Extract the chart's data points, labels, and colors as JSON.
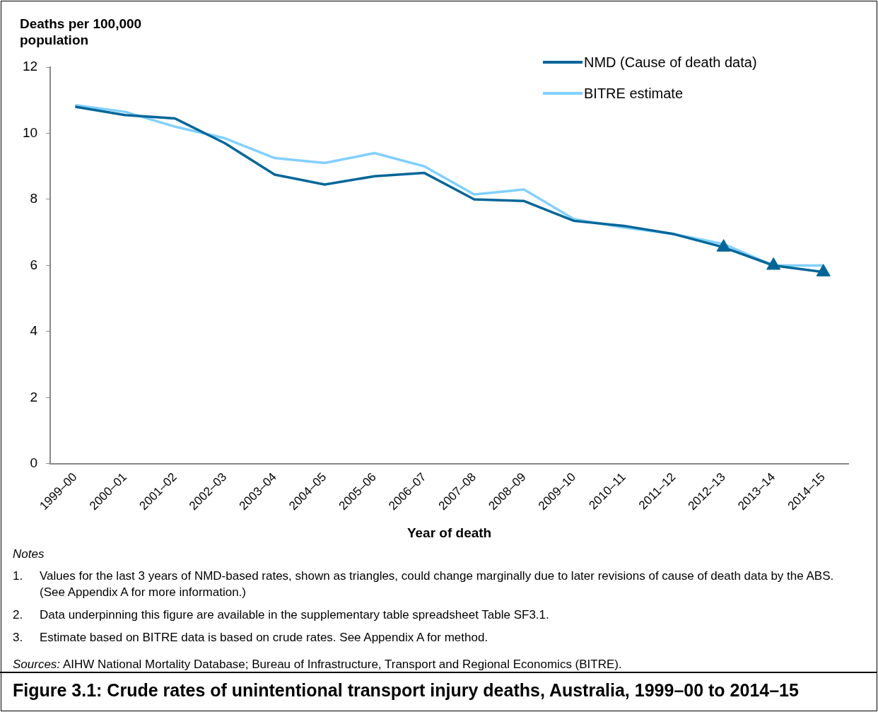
{
  "chart_data": {
    "type": "line",
    "ylabel": "Deaths per 100,000 population",
    "xlabel": "Year of death",
    "title": "Figure 3.1: Crude rates of unintentional transport injury deaths, Australia, 1999–00 to 2014–15",
    "categories": [
      "1999–00",
      "2000–01",
      "2001–02",
      "2002–03",
      "2003–04",
      "2004–05",
      "2005–06",
      "2006–07",
      "2007–08",
      "2008–09",
      "2009–10",
      "2010–11",
      "2011–12",
      "2012–13",
      "2013–14",
      "2014–15"
    ],
    "series": [
      {
        "name": "NMD (Cause of death data)",
        "color": "#006699",
        "values": [
          10.8,
          10.55,
          10.45,
          9.7,
          8.75,
          8.45,
          8.7,
          8.8,
          8.0,
          7.95,
          7.35,
          7.2,
          6.95,
          6.55,
          6.0,
          5.8
        ]
      },
      {
        "name": "BITRE estimate",
        "color": "#80d0ff",
        "values": [
          10.85,
          10.65,
          10.2,
          9.85,
          9.25,
          9.1,
          9.4,
          9.0,
          8.15,
          8.3,
          7.4,
          7.15,
          6.95,
          6.65,
          6.0,
          6.0
        ]
      },
      {
        "type": "scatter",
        "marker": "triangle",
        "color": "#006699",
        "values": [
          null,
          null,
          null,
          null,
          null,
          null,
          null,
          null,
          null,
          null,
          null,
          null,
          null,
          6.55,
          6.0,
          5.8
        ]
      }
    ],
    "ylim": [
      0,
      12
    ],
    "yticks": [
      0,
      2,
      4,
      6,
      8,
      10,
      12
    ],
    "grid": false,
    "legend": "top right",
    "marker": "none",
    "annotations": [
      "Notes",
      "1.\tValues for the last 3 years of NMD-based rates, shown as triangles, could change marginally due to later revisions of cause of death data by the ABS. (See Appendix A for more information.)",
      "2.\tData underpinning this figure are available in the supplementary table spreadsheet Table SF3.1.",
      "3.\tEstimate based on BITRE data is based on crude rates. See Appendix A for method.",
      "$^{}$Sources: AIHW National Mortality Database; Bureau of Infrastructure, Transport and Regional Economics (BITRE)."
    ]
  }
}
